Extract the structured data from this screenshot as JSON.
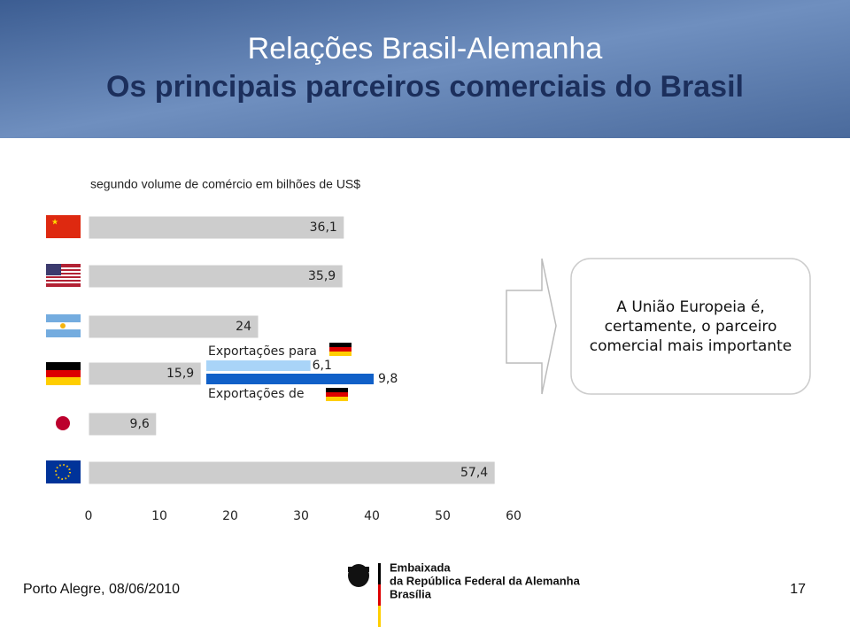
{
  "title": "Relações Brasil-Alemanha",
  "subtitle": "Os principais parceiros comerciais do Brasil",
  "chart_data": {
    "type": "bar",
    "orientation": "horizontal",
    "title": "segundo volume de comércio em bilhões de US$",
    "categories": [
      null,
      null,
      null,
      null,
      null,
      null
    ],
    "values": [
      36.1,
      35.9,
      24,
      15.9,
      9.6,
      57.4
    ],
    "value_labels": [
      "36,1",
      "35,9",
      "24",
      "15,9",
      "9,6",
      "57,4"
    ],
    "color": "#cdcdcd",
    "xlim": [
      0,
      60
    ],
    "xticks": [
      0,
      10,
      20,
      30,
      40,
      50,
      60
    ],
    "inset": {
      "series": [
        {
          "name": "Exportações para",
          "color": "#a9d4f8",
          "values": [
            6.1
          ],
          "value_labels": [
            "6,1"
          ]
        },
        {
          "name": "Exportações de",
          "color": "#1060c8",
          "values": [
            9.8
          ],
          "value_labels": [
            "9,8"
          ]
        }
      ]
    }
  },
  "callout": [
    "A União Europeia é,",
    "certamente, o parceiro",
    "comercial mais importante"
  ],
  "footer": {
    "left": "Porto Alegre, 08/06/2010",
    "page": "17",
    "logo": [
      "Embaixada",
      "da República Federal da Alemanha",
      "Brasília"
    ]
  }
}
